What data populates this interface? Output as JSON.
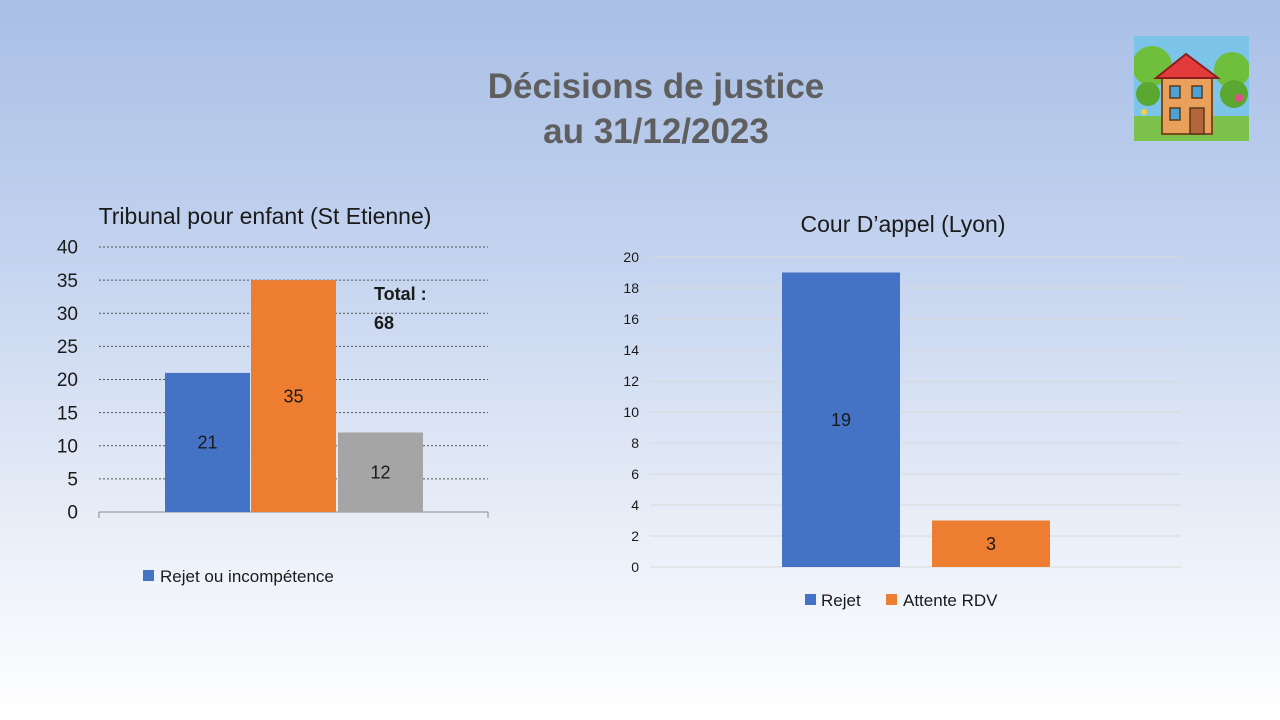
{
  "slide": {
    "title_line1": "Décisions de justice",
    "title_line2": "au 31/12/2023"
  },
  "logo": {
    "icon": "cartoon-house-logo"
  },
  "chart_data": [
    {
      "type": "bar",
      "title": "Tribunal pour enfant (St Etienne)",
      "categories": [
        ""
      ],
      "series": [
        {
          "name": "Rejet ou incompétence",
          "values": [
            21
          ],
          "color": "#4472c4"
        },
        {
          "values": [
            35
          ],
          "color": "#ed7d31"
        },
        {
          "values": [
            12
          ],
          "color": "#a5a5a5"
        }
      ],
      "ylim": [
        0,
        40
      ],
      "yticks": [
        0,
        5,
        10,
        15,
        20,
        25,
        30,
        35,
        40
      ],
      "grid": "dotted",
      "annotation": {
        "line1": "Total :",
        "line2": "68"
      },
      "legend": "bottom-left"
    },
    {
      "type": "bar",
      "title": "Cour D’appel (Lyon)",
      "categories": [
        ""
      ],
      "series": [
        {
          "name": "Rejet",
          "values": [
            19
          ],
          "color": "#4472c4"
        },
        {
          "name": "Attente RDV",
          "values": [
            3
          ],
          "color": "#ed7d31"
        }
      ],
      "ylim": [
        0,
        20
      ],
      "yticks": [
        0,
        2,
        4,
        6,
        8,
        10,
        12,
        14,
        16,
        18,
        20
      ],
      "grid": "solid",
      "legend": "bottom"
    }
  ]
}
